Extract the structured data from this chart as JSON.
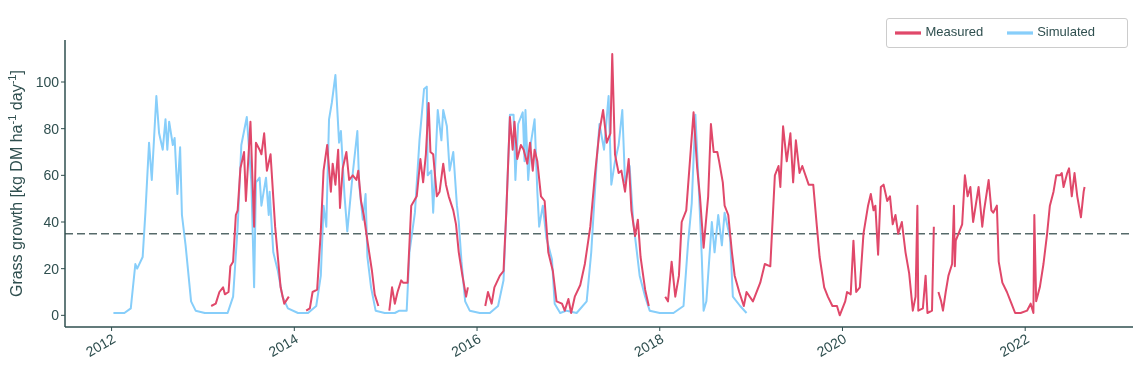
{
  "chart_data": {
    "type": "line",
    "ylabel": "Grass growth [kg DM ha$^{-1}$ day$^{-1}$]",
    "xlim": [
      2011.49,
      2023.18
    ],
    "xticks": [
      2012,
      2014,
      2016,
      2018,
      2020,
      2022
    ],
    "ylim": [
      -5,
      118
    ],
    "yticks": [
      0,
      20,
      40,
      60,
      80,
      100
    ],
    "legend": "top right",
    "ref_lines": [
      {
        "axis": "y",
        "value": 35,
        "color": "#566a6a",
        "line_style": "dashed"
      }
    ],
    "series": [
      {
        "name": "Simulated",
        "color": "#87cefa",
        "x": [
          2012.02,
          2012.14,
          2012.21,
          2012.26,
          2012.28,
          2012.34,
          2012.37,
          2012.41,
          2012.44,
          2012.49,
          2012.52,
          2012.56,
          2012.59,
          2012.61,
          2012.63,
          2012.67,
          2012.69,
          2012.72,
          2012.75,
          2012.77,
          2012.81,
          2012.87,
          2012.92,
          2013.02,
          2013.09,
          2013.18,
          2013.27,
          2013.33,
          2013.38,
          2013.42,
          2013.48,
          2013.53,
          2013.56,
          2013.58,
          2013.62,
          2013.64,
          2013.69,
          2013.72,
          2013.73,
          2013.77,
          2013.82,
          2013.87,
          2013.93,
          2014.04,
          2014.15,
          2014.24,
          2014.29,
          2014.32,
          2014.35,
          2014.38,
          2014.41,
          2014.45,
          2014.49,
          2014.51,
          2014.55,
          2014.58,
          2014.64,
          2014.69,
          2014.71,
          2014.75,
          2014.78,
          2014.8,
          2014.84,
          2014.89,
          2014.99,
          2015.1,
          2015.15,
          2015.23,
          2015.26,
          2015.32,
          2015.37,
          2015.42,
          2015.45,
          2015.46,
          2015.5,
          2015.52,
          2015.57,
          2015.61,
          2015.63,
          2015.67,
          2015.7,
          2015.74,
          2015.78,
          2015.8,
          2015.83,
          2015.87,
          2015.92,
          2016.03,
          2016.14,
          2016.23,
          2016.29,
          2016.32,
          2016.36,
          2016.4,
          2016.42,
          2016.45,
          2016.5,
          2016.52,
          2016.53,
          2016.56,
          2016.59,
          2016.63,
          2016.66,
          2016.68,
          2016.72,
          2016.76,
          2016.82,
          2016.85,
          2016.91,
          2016.98,
          2017.09,
          2017.2,
          2017.25,
          2017.31,
          2017.34,
          2017.39,
          2017.44,
          2017.47,
          2017.51,
          2017.55,
          2017.59,
          2017.62,
          2017.67,
          2017.71,
          2017.75,
          2017.78,
          2017.84,
          2017.89,
          2018.0,
          2018.15,
          2018.26,
          2018.31,
          2018.35,
          2018.39,
          2018.42,
          2018.46,
          2018.48,
          2018.51,
          2018.57,
          2018.6,
          2018.64,
          2018.68,
          2018.71,
          2018.77,
          2018.8,
          2018.88,
          2018.95
        ],
        "values": [
          1,
          1,
          3,
          22,
          20,
          25,
          44,
          74,
          58,
          94,
          78,
          71,
          84,
          71,
          83,
          73,
          76,
          52,
          72,
          43,
          30,
          6,
          2,
          1,
          1,
          1,
          1,
          8,
          38,
          73,
          85,
          57,
          12,
          57,
          59,
          47,
          59,
          43,
          53,
          27,
          19,
          8,
          3,
          1,
          1,
          4,
          17,
          47,
          38,
          84,
          91,
          103,
          74,
          79,
          51,
          36,
          61,
          79,
          56,
          41,
          52,
          25,
          12,
          2,
          1,
          1,
          2,
          2,
          27,
          44,
          75,
          97,
          98,
          60,
          62,
          44,
          88,
          75,
          88,
          81,
          62,
          70,
          47,
          40,
          23,
          6,
          2,
          1,
          1,
          4,
          15,
          44,
          86,
          86,
          58,
          82,
          87,
          66,
          88,
          58,
          74,
          84,
          53,
          38,
          47,
          33,
          24,
          5,
          1,
          2,
          1,
          6,
          27,
          66,
          82,
          71,
          94,
          56,
          66,
          73,
          88,
          57,
          64,
          40,
          27,
          17,
          8,
          2,
          1,
          1,
          4,
          31,
          48,
          86,
          61,
          25,
          2,
          6,
          40,
          27,
          43,
          30,
          44,
          33,
          8,
          4,
          1
        ]
      },
      {
        "name": "Measured",
        "color": "#e0486a",
        "x": [
          2013.09,
          2013.14,
          2013.18,
          2013.22,
          2013.24,
          2013.28,
          2013.3,
          2013.33,
          2013.36,
          2013.38,
          2013.41,
          2013.45,
          2013.47,
          2013.52,
          2013.56,
          2013.58,
          2013.62,
          2013.64,
          2013.67,
          2013.7,
          2013.74,
          2013.79,
          2013.82,
          2013.85,
          2013.89,
          2013.94,
          2014.03,
          2014.13,
          2014.17,
          2014.2,
          2014.25,
          2014.29,
          2014.32,
          2014.36,
          2014.4,
          2014.42,
          2014.45,
          2014.48,
          2014.5,
          2014.53,
          2014.57,
          2014.6,
          2014.64,
          2014.68,
          2014.7,
          2014.73,
          2014.76,
          2014.8,
          2014.85,
          2014.88,
          2014.92,
          2014.98,
          2015.04,
          2015.07,
          2015.1,
          2015.13,
          2015.17,
          2015.19,
          2015.24,
          2015.28,
          2015.34,
          2015.38,
          2015.41,
          2015.44,
          2015.47,
          2015.49,
          2015.52,
          2015.56,
          2015.59,
          2015.63,
          2015.66,
          2015.69,
          2015.74,
          2015.77,
          2015.8,
          2015.84,
          2015.88,
          2015.9,
          2016.0,
          2016.09,
          2016.12,
          2016.16,
          2016.19,
          2016.25,
          2016.29,
          2016.32,
          2016.36,
          2016.39,
          2016.41,
          2016.44,
          2016.48,
          2016.51,
          2016.55,
          2016.58,
          2016.61,
          2016.63,
          2016.66,
          2016.7,
          2016.74,
          2016.78,
          2016.83,
          2016.87,
          2016.93,
          2016.96,
          2017.0,
          2017.03,
          2017.07,
          2017.13,
          2017.18,
          2017.24,
          2017.29,
          2017.34,
          2017.38,
          2017.42,
          2017.46,
          2017.48,
          2017.51,
          2017.55,
          2017.58,
          2017.62,
          2017.66,
          2017.69,
          2017.73,
          2017.76,
          2017.79,
          2017.84,
          2017.88,
          2017.97,
          2018.06,
          2018.09,
          2018.13,
          2018.17,
          2018.21,
          2018.24,
          2018.29,
          2018.33,
          2018.37,
          2018.41,
          2018.44,
          2018.48,
          2018.53,
          2018.56,
          2018.59,
          2018.63,
          2018.65,
          2018.69,
          2018.71,
          2018.75,
          2018.79,
          2018.82,
          2018.87,
          2018.92,
          2018.95,
          2019.02,
          2019.1,
          2019.15,
          2019.21,
          2019.26,
          2019.3,
          2019.32,
          2019.35,
          2019.39,
          2019.43,
          2019.46,
          2019.49,
          2019.53,
          2019.56,
          2019.63,
          2019.68,
          2019.72,
          2019.75,
          2019.8,
          2019.84,
          2019.89,
          2019.94,
          2019.97,
          2020.03,
          2020.05,
          2020.09,
          2020.12,
          2020.15,
          2020.19,
          2020.23,
          2020.28,
          2020.31,
          2020.34,
          2020.36,
          2020.39,
          2020.42,
          2020.45,
          2020.49,
          2020.52,
          2020.55,
          2020.58,
          2020.61,
          2020.65,
          2020.69,
          2020.73,
          2020.77,
          2020.8,
          2020.82,
          2020.83,
          2020.88,
          2020.91,
          2020.93,
          2020.98,
          2021.0,
          2021.02,
          2021.05,
          2021.08,
          2021.1,
          2021.13,
          2021.16,
          2021.2,
          2021.22,
          2021.23,
          2021.24,
          2021.28,
          2021.31,
          2021.34,
          2021.37,
          2021.4,
          2021.43,
          2021.49,
          2021.53,
          2021.55,
          2021.6,
          2021.63,
          2021.65,
          2021.69,
          2021.71,
          2021.75,
          2021.8,
          2021.85,
          2021.89,
          2021.95,
          2022.02,
          2022.06,
          2022.09,
          2022.1,
          2022.12,
          2022.16,
          2022.2,
          2022.24,
          2022.27,
          2022.31,
          2022.34,
          2022.38,
          2022.4,
          2022.42,
          2022.46,
          2022.48,
          2022.51,
          2022.54,
          2022.57,
          2022.61,
          2022.64,
          2022.65
        ],
        "values": [
          4,
          5,
          10,
          12,
          9,
          10,
          21,
          23,
          43,
          45,
          63,
          70,
          49,
          83,
          38,
          74,
          71,
          69,
          78,
          62,
          69,
          38,
          25,
          12,
          5,
          8,
          null,
          2,
          3,
          10,
          11,
          36,
          62,
          73,
          53,
          65,
          56,
          71,
          46,
          63,
          70,
          58,
          60,
          58,
          62,
          49,
          43,
          32,
          19,
          9,
          4,
          null,
          2,
          12,
          5,
          10,
          15,
          14,
          14,
          47,
          51,
          67,
          57,
          69,
          91,
          70,
          69,
          51,
          53,
          65,
          56,
          51,
          45,
          39,
          27,
          17,
          8,
          12,
          null,
          4,
          10,
          5,
          12,
          17,
          19,
          44,
          85,
          71,
          83,
          67,
          73,
          71,
          65,
          74,
          62,
          71,
          66,
          51,
          49,
          27,
          19,
          6,
          5,
          2,
          7,
          1,
          8,
          13,
          22,
          38,
          60,
          79,
          88,
          74,
          78,
          112,
          69,
          61,
          62,
          53,
          67,
          45,
          34,
          41,
          25,
          11,
          4,
          null,
          8,
          6,
          23,
          8,
          17,
          40,
          45,
          66,
          87,
          63,
          51,
          29,
          51,
          82,
          70,
          70,
          66,
          57,
          47,
          43,
          27,
          17,
          10,
          4,
          10,
          6,
          14,
          22,
          21,
          60,
          64,
          55,
          81,
          66,
          78,
          57,
          75,
          61,
          64,
          56,
          56,
          38,
          25,
          12,
          8,
          4,
          4,
          0,
          6,
          10,
          9,
          32,
          10,
          12,
          35,
          47,
          52,
          45,
          47,
          26,
          55,
          56,
          49,
          51,
          39,
          43,
          35,
          40,
          27,
          18,
          2,
          8,
          47,
          2,
          3,
          17,
          1,
          2,
          38,
          null,
          10,
          6,
          2,
          10,
          17,
          22,
          47,
          21,
          32,
          36,
          39,
          60,
          51,
          55,
          40,
          55,
          38,
          45,
          58,
          45,
          44,
          47,
          23,
          14,
          10,
          5,
          1,
          1,
          2,
          5,
          1,
          43,
          6,
          12,
          22,
          35,
          47,
          53,
          60,
          60,
          61,
          55,
          61,
          63,
          51,
          61,
          51,
          42,
          53,
          55
        ]
      }
    ]
  }
}
